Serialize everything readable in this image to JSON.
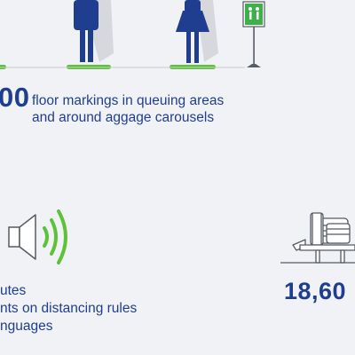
{
  "colors": {
    "background": "#f1f2f6",
    "primary_blue": "#1f3e8f",
    "accent_green": "#5cc23a",
    "shadow": "#d6d8de",
    "sign_green": "#3db04a",
    "dark_gray": "#555b63"
  },
  "icons": [
    "man-figure-icon",
    "woman-figure-icon",
    "exit-sign-icon",
    "speaker-icon",
    "sound-waves-icon",
    "baggage-carousel-icon"
  ],
  "floor_markings": {
    "figure": "00",
    "text_line1": "floor markings in queuing areas",
    "text_line2": "and around  aggage carousels"
  },
  "announcements": {
    "line1": "utes",
    "line2": "nts on distancing rules",
    "line3": "nguages"
  },
  "carousel_stat": {
    "figure": "18,60"
  }
}
